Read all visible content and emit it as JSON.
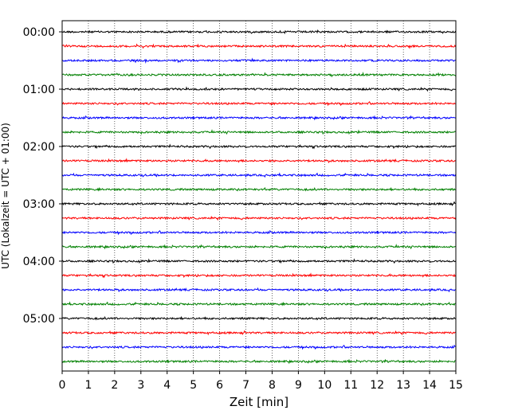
{
  "chart_data": {
    "type": "line",
    "title": "",
    "xlabel": "Zeit  [min]",
    "ylabel": "UTC (Lokalzeit = UTC + 01:00)",
    "xlim": [
      0,
      15
    ],
    "x_ticks": [
      "0",
      "1",
      "2",
      "3",
      "4",
      "5",
      "6",
      "7",
      "8",
      "9",
      "10",
      "11",
      "12",
      "13",
      "14",
      "15"
    ],
    "y_ticks": [
      "00:00",
      "01:00",
      "02:00",
      "03:00",
      "04:00",
      "05:00"
    ],
    "grid": "vertical-dotted",
    "trace_interval_minutes": 15,
    "trace_count": 24,
    "trace_color_cycle": [
      "#000000",
      "#ff0000",
      "#0000ff",
      "#008000"
    ],
    "series": [
      {
        "start": "00:00"
      },
      {
        "start": "00:15"
      },
      {
        "start": "00:30"
      },
      {
        "start": "00:45"
      },
      {
        "start": "01:00"
      },
      {
        "start": "01:15"
      },
      {
        "start": "01:30"
      },
      {
        "start": "01:45"
      },
      {
        "start": "02:00"
      },
      {
        "start": "02:15"
      },
      {
        "start": "02:30"
      },
      {
        "start": "02:45"
      },
      {
        "start": "03:00"
      },
      {
        "start": "03:15"
      },
      {
        "start": "03:30"
      },
      {
        "start": "03:45"
      },
      {
        "start": "04:00"
      },
      {
        "start": "04:15"
      },
      {
        "start": "04:30"
      },
      {
        "start": "04:45"
      },
      {
        "start": "05:00"
      },
      {
        "start": "05:15"
      },
      {
        "start": "05:30"
      },
      {
        "start": "05:45"
      }
    ]
  }
}
